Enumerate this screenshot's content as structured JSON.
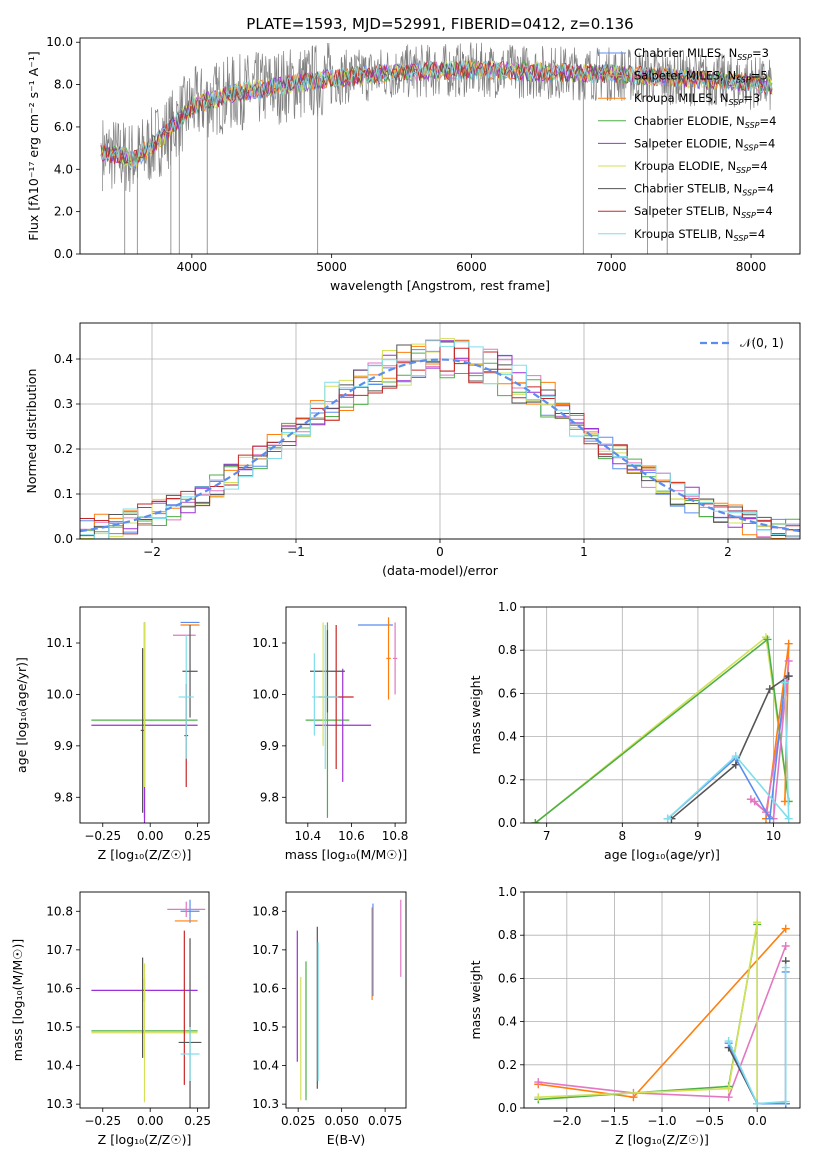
{
  "figure_title": "PLATE=1593, MJD=52991, FIBERID=0412, z=0.136",
  "chart_data": [
    {
      "id": "spectrum",
      "type": "line",
      "title": "PLATE=1593, MJD=52991, FIBERID=0412, z=0.136",
      "xlabel": "wavelength [Angstrom, rest frame]",
      "ylabel": "Flux [fλ10⁻¹⁷ erg cm⁻² s⁻¹ A⁻¹]",
      "xlim": [
        3200,
        8350
      ],
      "ylim": [
        0,
        10.2
      ],
      "xticks": [
        4000,
        5000,
        6000,
        7000,
        8000
      ],
      "yticks": [
        0,
        2,
        4,
        6,
        8,
        10
      ],
      "legend_position": "right",
      "series": [
        {
          "name": "Chabrier MILES, N",
          "sub": "SSP",
          "suffix": "=3",
          "color": "#5b8def"
        },
        {
          "name": "Salpeter MILES, N",
          "sub": "SSP",
          "suffix": "=5",
          "color": "#e377c2"
        },
        {
          "name": "Kroupa MILES, N",
          "sub": "SSP",
          "suffix": "=3",
          "color": "#ff7f0e"
        },
        {
          "name": "Chabrier ELODIE, N",
          "sub": "SSP",
          "suffix": "=4",
          "color": "#4daf4a"
        },
        {
          "name": "Salpeter ELODIE, N",
          "sub": "SSP",
          "suffix": "=4",
          "color": "#9b30d9"
        },
        {
          "name": "Kroupa ELODIE, N",
          "sub": "SSP",
          "suffix": "=4",
          "color": "#d4e157"
        },
        {
          "name": "Chabrier STELIB, N",
          "sub": "SSP",
          "suffix": "=4",
          "color": "#555555"
        },
        {
          "name": "Salpeter STELIB, N",
          "sub": "SSP",
          "suffix": "=4",
          "color": "#c62828"
        },
        {
          "name": "Kroupa STELIB, N",
          "sub": "SSP",
          "suffix": "=4",
          "color": "#80deea"
        }
      ],
      "data_grey": {
        "color": "#808080"
      },
      "continuum": {
        "x": [
          3350,
          3600,
          3800,
          4000,
          4300,
          4600,
          5000,
          5500,
          6000,
          6500,
          7000,
          7500,
          8000,
          8150
        ],
        "y": [
          4.8,
          4.5,
          5.6,
          7.0,
          7.6,
          7.9,
          8.3,
          8.6,
          8.7,
          8.6,
          8.5,
          8.3,
          8.1,
          7.9
        ]
      }
    },
    {
      "id": "residuals",
      "type": "step",
      "xlabel": "(data-model)/error",
      "ylabel": "Normed distribution",
      "xlim": [
        -2.5,
        2.5
      ],
      "ylim": [
        0,
        0.48
      ],
      "xticks": [
        -2,
        -1,
        0,
        1,
        2
      ],
      "yticks": [
        0.0,
        0.1,
        0.2,
        0.3,
        0.4
      ],
      "grid": true,
      "legend_position": "top-right",
      "gaussian_label": "𝒩(0, 1)",
      "gaussian_color": "#5b8def"
    },
    {
      "id": "age-vs-Z",
      "type": "errorbar",
      "xlabel_text": "Z [log₁₀(Z/Z☉)]",
      "ylabel_text": "age  [log₁₀(age/yr)]",
      "xlim": [
        -0.37,
        0.31
      ],
      "ylim": [
        9.75,
        10.17
      ],
      "xticks": [
        -0.25,
        0.0,
        0.25
      ],
      "xtick_labels": [
        "−0.25",
        "0.00",
        "0.25"
      ],
      "yticks": [
        9.8,
        9.9,
        10.0,
        10.1
      ],
      "ytick_labels": [
        "9.8",
        "9.9",
        "10.0",
        "10.1"
      ],
      "points": [
        {
          "x": -0.03,
          "y": 9.95,
          "xe": 0.28,
          "ye": 0.19,
          "c": "#4daf4a"
        },
        {
          "x": -0.03,
          "y": 9.94,
          "xe": 0.28,
          "ye": 0.2,
          "c": "#9b30d9"
        },
        {
          "x": -0.04,
          "y": 9.93,
          "xe": 0.01,
          "ye": 0.16,
          "c": "#555555"
        },
        {
          "x": 0.19,
          "y": 9.92,
          "xe": 0.01,
          "ye": 0.1,
          "c": "#c62828"
        },
        {
          "x": 0.21,
          "y": 10.14,
          "xe": 0.05,
          "ye": 0.0,
          "c": "#5b8def"
        },
        {
          "x": 0.21,
          "y": 10.135,
          "xe": 0.05,
          "ye": 0.0,
          "c": "#ff7f0e"
        },
        {
          "x": 0.18,
          "y": 10.115,
          "xe": 0.06,
          "ye": 0.0,
          "c": "#e377c2"
        },
        {
          "x": 0.21,
          "y": 10.045,
          "xe": 0.04,
          "ye": 0.09,
          "c": "#555555"
        },
        {
          "x": 0.19,
          "y": 9.995,
          "xe": 0.04,
          "ye": 0.12,
          "c": "#80deea"
        },
        {
          "x": -0.03,
          "y": 9.98,
          "xe": 0.0,
          "ye": 0.16,
          "c": "#d4e157"
        }
      ]
    },
    {
      "id": "age-vs-mass",
      "type": "errorbar",
      "xlabel_text": "mass [log₁₀(M/M☉)]",
      "xlim": [
        10.3,
        10.85
      ],
      "ylim": [
        9.75,
        10.17
      ],
      "xticks": [
        10.4,
        10.6,
        10.8
      ],
      "xtick_labels": [
        "10.4",
        "10.6",
        "10.8"
      ],
      "yticks": [
        9.8,
        9.9,
        10.0,
        10.1
      ],
      "ytick_labels": [
        "9.8",
        "9.9",
        "10.0",
        "10.1"
      ],
      "points": [
        {
          "x": 10.49,
          "y": 9.95,
          "xe": 0.1,
          "ye": 0.19,
          "c": "#4daf4a"
        },
        {
          "x": 10.56,
          "y": 9.94,
          "xe": 0.13,
          "ye": 0.11,
          "c": "#9b30d9"
        },
        {
          "x": 10.53,
          "y": 9.995,
          "xe": 0.08,
          "ye": 0.14,
          "c": "#c62828"
        },
        {
          "x": 10.49,
          "y": 10.045,
          "xe": 0.08,
          "ye": 0.08,
          "c": "#555555"
        },
        {
          "x": 10.48,
          "y": 9.995,
          "xe": 0.06,
          "ye": 0.14,
          "c": "#80deea"
        },
        {
          "x": 10.71,
          "y": 10.135,
          "xe": 0.08,
          "ye": 0.0,
          "c": "#5b8def"
        },
        {
          "x": 10.77,
          "y": 10.07,
          "xe": 0.01,
          "ye": 0.08,
          "c": "#ff7f0e"
        },
        {
          "x": 10.8,
          "y": 10.07,
          "xe": 0.01,
          "ye": 0.07,
          "c": "#e377c2"
        },
        {
          "x": 10.43,
          "y": 10.0,
          "xe": 0.0,
          "ye": 0.08,
          "c": "#80deea"
        },
        {
          "x": 10.47,
          "y": 10.02,
          "xe": 0.0,
          "ye": 0.12,
          "c": "#d4e157"
        }
      ]
    },
    {
      "id": "mass-weight-vs-age",
      "type": "line",
      "xlabel_text": "age  [log₁₀(age/yr)]",
      "ylabel": "mass weight",
      "xlim": [
        6.7,
        10.35
      ],
      "ylim": [
        0,
        1.0
      ],
      "xticks": [
        7,
        8,
        9,
        10
      ],
      "xtick_labels": [
        "7",
        "8",
        "9",
        "10"
      ],
      "yticks": [
        0.0,
        0.2,
        0.4,
        0.6,
        0.8,
        1.0
      ],
      "ytick_labels": [
        "0.0",
        "0.2",
        "0.4",
        "0.6",
        "0.8",
        "1.0"
      ],
      "grid": true,
      "lines": [
        {
          "c": "#d4e157",
          "x": [
            6.85,
            9.9,
            10.2
          ],
          "y": [
            0.0,
            0.86,
            0.1
          ]
        },
        {
          "c": "#4daf4a",
          "x": [
            6.85,
            9.92,
            10.2
          ],
          "y": [
            0.0,
            0.85,
            0.1
          ]
        },
        {
          "c": "#ff7f0e",
          "x": [
            9.9,
            10.2,
            10.15
          ],
          "y": [
            0.02,
            0.83,
            0.1
          ]
        },
        {
          "c": "#e377c2",
          "x": [
            9.7,
            10.0,
            10.2
          ],
          "y": [
            0.11,
            0.02,
            0.75
          ]
        },
        {
          "c": "#e377c2",
          "x": [
            9.75,
            9.9,
            10.2
          ],
          "y": [
            0.1,
            0.05,
            0.68
          ]
        },
        {
          "c": "#555555",
          "x": [
            8.65,
            9.5,
            9.95,
            10.2
          ],
          "y": [
            0.02,
            0.27,
            0.62,
            0.68
          ]
        },
        {
          "c": "#5b8def",
          "x": [
            8.6,
            9.5,
            9.95,
            10.15
          ],
          "y": [
            0.02,
            0.3,
            0.02,
            0.65
          ]
        },
        {
          "c": "#80deea",
          "x": [
            8.6,
            9.5,
            10.2,
            10.15
          ],
          "y": [
            0.02,
            0.31,
            0.02,
            0.65
          ]
        }
      ]
    },
    {
      "id": "mass-vs-Z",
      "type": "errorbar",
      "xlabel_text": "Z [log₁₀(Z/Z☉)]",
      "ylabel_text": "mass [log₁₀(M/M☉)]",
      "xlim": [
        -0.37,
        0.31
      ],
      "ylim": [
        10.29,
        10.85
      ],
      "xticks": [
        -0.25,
        0.0,
        0.25
      ],
      "xtick_labels": [
        "−0.25",
        "0.00",
        "0.25"
      ],
      "yticks": [
        10.3,
        10.4,
        10.5,
        10.6,
        10.7,
        10.8
      ],
      "ytick_labels": [
        "10.3",
        "10.4",
        "10.5",
        "10.6",
        "10.7",
        "10.8"
      ],
      "points": [
        {
          "x": -0.03,
          "y": 10.595,
          "xe": 0.28,
          "ye": 0.03,
          "c": "#9b30d9"
        },
        {
          "x": -0.03,
          "y": 10.49,
          "xe": 0.28,
          "ye": 0.0,
          "c": "#4daf4a"
        },
        {
          "x": -0.03,
          "y": 10.485,
          "xe": 0.28,
          "ye": 0.18,
          "c": "#d4e157"
        },
        {
          "x": -0.04,
          "y": 10.55,
          "xe": 0.0,
          "ye": 0.13,
          "c": "#555555"
        },
        {
          "x": 0.18,
          "y": 10.55,
          "xe": 0.0,
          "ye": 0.2,
          "c": "#c62828"
        },
        {
          "x": 0.21,
          "y": 10.8,
          "xe": 0.05,
          "ye": 0.03,
          "c": "#5b8def"
        },
        {
          "x": 0.19,
          "y": 10.775,
          "xe": 0.06,
          "ye": 0.0,
          "c": "#ff7f0e"
        },
        {
          "x": 0.19,
          "y": 10.805,
          "xe": 0.1,
          "ye": 0.02,
          "c": "#e377c2"
        },
        {
          "x": 0.21,
          "y": 10.46,
          "xe": 0.06,
          "ye": 0.27,
          "c": "#555555"
        },
        {
          "x": 0.21,
          "y": 10.43,
          "xe": 0.05,
          "ye": 0.07,
          "c": "#80deea"
        }
      ]
    },
    {
      "id": "mass-vs-EBV",
      "type": "errorbar",
      "xlabel": "E(B-V)",
      "xlim": [
        0.018,
        0.087
      ],
      "ylim": [
        10.29,
        10.85
      ],
      "xticks": [
        0.025,
        0.05,
        0.075
      ],
      "xtick_labels": [
        "0.025",
        "0.050",
        "0.075"
      ],
      "yticks": [
        10.3,
        10.4,
        10.5,
        10.6,
        10.7,
        10.8
      ],
      "ytick_labels": [
        "10.3",
        "10.4",
        "10.5",
        "10.6",
        "10.7",
        "10.8"
      ],
      "points": [
        {
          "x": 0.0245,
          "y": 10.58,
          "xe": 0.0,
          "ye": 0.17,
          "c": "#9b30d9"
        },
        {
          "x": 0.0265,
          "y": 10.47,
          "xe": 0.0,
          "ye": 0.16,
          "c": "#d4e157"
        },
        {
          "x": 0.0295,
          "y": 10.49,
          "xe": 0.0,
          "ye": 0.18,
          "c": "#4daf4a"
        },
        {
          "x": 0.036,
          "y": 10.55,
          "xe": 0.0,
          "ye": 0.21,
          "c": "#555555"
        },
        {
          "x": 0.0365,
          "y": 10.54,
          "xe": 0.0,
          "ye": 0.18,
          "c": "#80deea"
        },
        {
          "x": 0.0675,
          "y": 10.69,
          "xe": 0.0,
          "ye": 0.12,
          "c": "#ff7f0e"
        },
        {
          "x": 0.068,
          "y": 10.7,
          "xe": 0.0,
          "ye": 0.12,
          "c": "#5b8def"
        },
        {
          "x": 0.084,
          "y": 10.73,
          "xe": 0.0,
          "ye": 0.1,
          "c": "#e377c2"
        }
      ]
    },
    {
      "id": "mass-weight-vs-Z",
      "type": "line",
      "xlabel_text": "Z [log₁₀(Z/Z☉)]",
      "ylabel": "mass weight",
      "xlim": [
        -2.45,
        0.45
      ],
      "ylim": [
        0,
        1.0
      ],
      "xticks": [
        -2.0,
        -1.5,
        -1.0,
        -0.5,
        0.0
      ],
      "xtick_labels": [
        "−2.0",
        "−1.5",
        "−1.0",
        "−0.5",
        "0.0"
      ],
      "yticks": [
        0.0,
        0.2,
        0.4,
        0.6,
        0.8,
        1.0
      ],
      "ytick_labels": [
        "0.0",
        "0.2",
        "0.4",
        "0.6",
        "0.8",
        "1.0"
      ],
      "grid": true,
      "lines": [
        {
          "c": "#ff7f0e",
          "x": [
            -2.3,
            -1.3,
            0.3
          ],
          "y": [
            0.11,
            0.05,
            0.83
          ]
        },
        {
          "c": "#e377c2",
          "x": [
            -2.3,
            -1.3,
            -0.3,
            0.3
          ],
          "y": [
            0.12,
            0.07,
            0.05,
            0.75
          ]
        },
        {
          "c": "#4daf4a",
          "x": [
            -2.3,
            -0.3,
            0.0,
            0.0,
            0.3
          ],
          "y": [
            0.04,
            0.1,
            0.85,
            0.02,
            0.02
          ]
        },
        {
          "c": "#d4e157",
          "x": [
            -2.3,
            -0.3,
            0.0,
            0.0
          ],
          "y": [
            0.05,
            0.09,
            0.86,
            0.02
          ]
        },
        {
          "c": "#555555",
          "x": [
            -0.3,
            0.0,
            0.3,
            0.3
          ],
          "y": [
            0.28,
            0.02,
            0.02,
            0.68
          ]
        },
        {
          "c": "#5b8def",
          "x": [
            -0.3,
            0.0,
            0.3,
            0.3
          ],
          "y": [
            0.3,
            0.02,
            0.02,
            0.63
          ]
        },
        {
          "c": "#80deea",
          "x": [
            -0.3,
            0.0,
            0.3,
            0.3
          ],
          "y": [
            0.31,
            0.02,
            0.03,
            0.65
          ]
        }
      ]
    }
  ]
}
